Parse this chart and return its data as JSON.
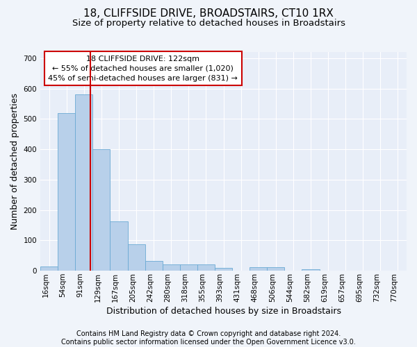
{
  "title": "18, CLIFFSIDE DRIVE, BROADSTAIRS, CT10 1RX",
  "subtitle": "Size of property relative to detached houses in Broadstairs",
  "xlabel": "Distribution of detached houses by size in Broadstairs",
  "ylabel": "Number of detached properties",
  "bin_labels": [
    "16sqm",
    "54sqm",
    "91sqm",
    "129sqm",
    "167sqm",
    "205sqm",
    "242sqm",
    "280sqm",
    "318sqm",
    "355sqm",
    "393sqm",
    "431sqm",
    "468sqm",
    "506sqm",
    "544sqm",
    "582sqm",
    "619sqm",
    "657sqm",
    "695sqm",
    "732sqm",
    "770sqm"
  ],
  "bar_heights": [
    15,
    520,
    580,
    400,
    163,
    88,
    33,
    20,
    22,
    20,
    10,
    0,
    12,
    12,
    0,
    5,
    0,
    0,
    0,
    0,
    0
  ],
  "bar_color": "#b8d0ea",
  "bar_edgecolor": "#6aaad4",
  "property_line_x": 2.87,
  "annotation_line1": "18 CLIFFSIDE DRIVE: 122sqm",
  "annotation_line2": "← 55% of detached houses are smaller (1,020)",
  "annotation_line3": "45% of semi-detached houses are larger (831) →",
  "annotation_box_color": "#ffffff",
  "annotation_box_edgecolor": "#cc0000",
  "vline_color": "#cc0000",
  "ylim": [
    0,
    720
  ],
  "yticks": [
    0,
    100,
    200,
    300,
    400,
    500,
    600,
    700
  ],
  "footer1": "Contains HM Land Registry data © Crown copyright and database right 2024.",
  "footer2": "Contains public sector information licensed under the Open Government Licence v3.0.",
  "background_color": "#f0f4fa",
  "plot_background": "#e8eef8",
  "grid_color": "#ffffff",
  "title_fontsize": 11,
  "subtitle_fontsize": 9.5,
  "axis_label_fontsize": 9,
  "tick_fontsize": 7.5,
  "annotation_fontsize": 8,
  "footer_fontsize": 7
}
